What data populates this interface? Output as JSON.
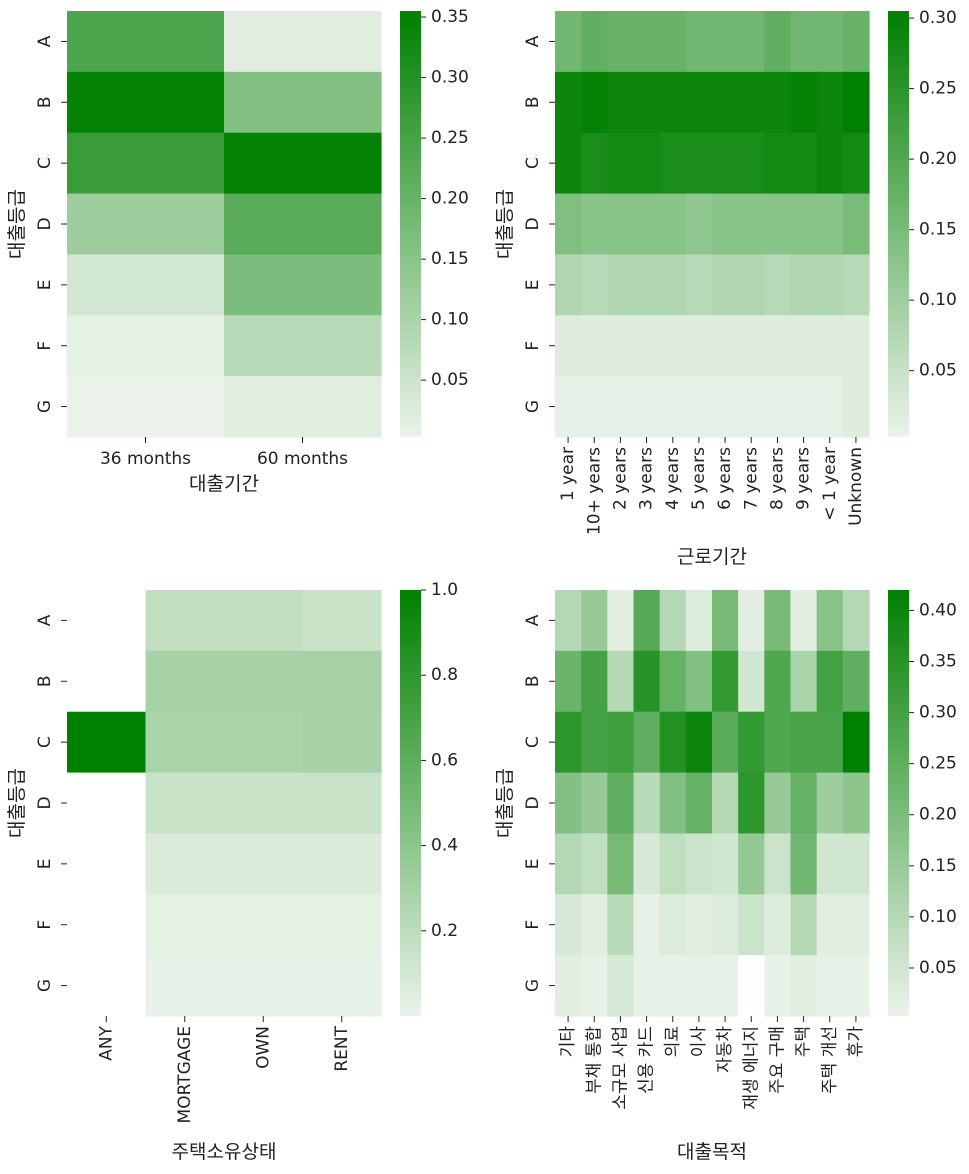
{
  "colormap": {
    "low": "#ebf3eb",
    "high": "#008000",
    "missing": "#ffffff"
  },
  "chart_data": [
    {
      "type": "heatmap",
      "title": "",
      "xlabel": "대출기간",
      "ylabel": "대출등급",
      "x_categories": [
        "36 months",
        "60 months"
      ],
      "y_categories": [
        "A",
        "B",
        "C",
        "D",
        "E",
        "F",
        "G"
      ],
      "values": [
        [
          0.24,
          0.02
        ],
        [
          0.35,
          0.16
        ],
        [
          0.27,
          0.35
        ],
        [
          0.12,
          0.22
        ],
        [
          0.04,
          0.17
        ],
        [
          0.01,
          0.08
        ],
        [
          0.005,
          0.02
        ]
      ],
      "colorbar": {
        "min": 0.003,
        "max": 0.355,
        "ticks": [
          "0.05",
          "0.10",
          "0.15",
          "0.20",
          "0.25",
          "0.30",
          "0.35"
        ],
        "tick_values": [
          0.05,
          0.1,
          0.15,
          0.2,
          0.25,
          0.3,
          0.35
        ]
      },
      "x_rotate": false
    },
    {
      "type": "heatmap",
      "title": "",
      "xlabel": "근로기간",
      "ylabel": "대출등급",
      "x_categories": [
        "1 year",
        "10+ years",
        "2 years",
        "3 years",
        "4 years",
        "5 years",
        "6 years",
        "7 years",
        "8 years",
        "9 years",
        "< 1 year",
        "Unknown"
      ],
      "y_categories": [
        "A",
        "B",
        "C",
        "D",
        "E",
        "F",
        "G"
      ],
      "values": [
        [
          0.16,
          0.18,
          0.17,
          0.17,
          0.17,
          0.16,
          0.16,
          0.16,
          0.18,
          0.16,
          0.16,
          0.17
        ],
        [
          0.29,
          0.3,
          0.29,
          0.29,
          0.29,
          0.29,
          0.29,
          0.29,
          0.29,
          0.3,
          0.29,
          0.305
        ],
        [
          0.29,
          0.27,
          0.28,
          0.28,
          0.27,
          0.27,
          0.27,
          0.27,
          0.28,
          0.28,
          0.29,
          0.28
        ],
        [
          0.14,
          0.13,
          0.13,
          0.13,
          0.13,
          0.12,
          0.13,
          0.13,
          0.13,
          0.13,
          0.13,
          0.15
        ],
        [
          0.08,
          0.07,
          0.08,
          0.08,
          0.08,
          0.07,
          0.08,
          0.08,
          0.07,
          0.08,
          0.08,
          0.07
        ],
        [
          0.02,
          0.02,
          0.02,
          0.02,
          0.02,
          0.02,
          0.02,
          0.02,
          0.02,
          0.02,
          0.02,
          0.02
        ],
        [
          0.01,
          0.01,
          0.01,
          0.01,
          0.01,
          0.01,
          0.01,
          0.01,
          0.01,
          0.01,
          0.01,
          0.02
        ]
      ],
      "colorbar": {
        "min": 0.003,
        "max": 0.305,
        "ticks": [
          "0.05",
          "0.10",
          "0.15",
          "0.20",
          "0.25",
          "0.30"
        ],
        "tick_values": [
          0.05,
          0.1,
          0.15,
          0.2,
          0.25,
          0.3
        ]
      },
      "x_rotate": true
    },
    {
      "type": "heatmap",
      "title": "",
      "xlabel": "주택소유상태",
      "ylabel": "대출등급",
      "x_categories": [
        "ANY",
        "MORTGAGE",
        "OWN",
        "RENT"
      ],
      "y_categories": [
        "A",
        "B",
        "C",
        "D",
        "E",
        "F",
        "G"
      ],
      "values": [
        [
          null,
          0.18,
          0.18,
          0.15
        ],
        [
          null,
          0.3,
          0.3,
          0.3
        ],
        [
          1.0,
          0.28,
          0.28,
          0.29
        ],
        [
          null,
          0.15,
          0.15,
          0.15
        ],
        [
          null,
          0.07,
          0.07,
          0.07
        ],
        [
          null,
          0.02,
          0.02,
          0.02
        ],
        [
          null,
          0.01,
          0.01,
          0.01
        ]
      ],
      "colorbar": {
        "min": 0.0,
        "max": 1.0,
        "ticks": [
          "0.2",
          "0.4",
          "0.6",
          "0.8",
          "1.0"
        ],
        "tick_values": [
          0.2,
          0.4,
          0.6,
          0.8,
          1.0
        ]
      },
      "x_rotate": true
    },
    {
      "type": "heatmap",
      "title": "",
      "xlabel": "대출목적",
      "ylabel": "대출등급",
      "x_categories": [
        "기타",
        "부채 통합",
        "소규모 사업",
        "신용 카드",
        "의료",
        "이사",
        "자동차",
        "재생 에너지",
        "주요 구매",
        "주택",
        "주택 개선",
        "휴가"
      ],
      "y_categories": [
        "A",
        "B",
        "C",
        "D",
        "E",
        "F",
        "G"
      ],
      "values": [
        [
          0.1,
          0.15,
          0.02,
          0.27,
          0.1,
          0.03,
          0.21,
          0.02,
          0.21,
          0.02,
          0.18,
          0.1
        ],
        [
          0.23,
          0.3,
          0.1,
          0.35,
          0.24,
          0.19,
          0.33,
          0.05,
          0.28,
          0.12,
          0.3,
          0.25
        ],
        [
          0.34,
          0.3,
          0.31,
          0.25,
          0.36,
          0.4,
          0.26,
          0.33,
          0.28,
          0.29,
          0.29,
          0.42
        ],
        [
          0.19,
          0.15,
          0.25,
          0.09,
          0.19,
          0.24,
          0.1,
          0.34,
          0.15,
          0.24,
          0.14,
          0.17
        ],
        [
          0.1,
          0.08,
          0.21,
          0.04,
          0.08,
          0.06,
          0.05,
          0.16,
          0.06,
          0.22,
          0.05,
          0.05
        ],
        [
          0.04,
          0.02,
          0.09,
          0.01,
          0.03,
          0.02,
          0.03,
          0.06,
          0.03,
          0.1,
          0.02,
          0.02
        ],
        [
          0.02,
          0.01,
          0.04,
          0.01,
          0.01,
          0.01,
          0.01,
          null,
          0.01,
          0.02,
          0.01,
          0.01
        ]
      ],
      "colorbar": {
        "min": 0.003,
        "max": 0.42,
        "ticks": [
          "0.05",
          "0.10",
          "0.15",
          "0.20",
          "0.25",
          "0.30",
          "0.35",
          "0.40"
        ],
        "tick_values": [
          0.05,
          0.1,
          0.15,
          0.2,
          0.25,
          0.3,
          0.35,
          0.4
        ]
      },
      "x_rotate": true
    }
  ]
}
